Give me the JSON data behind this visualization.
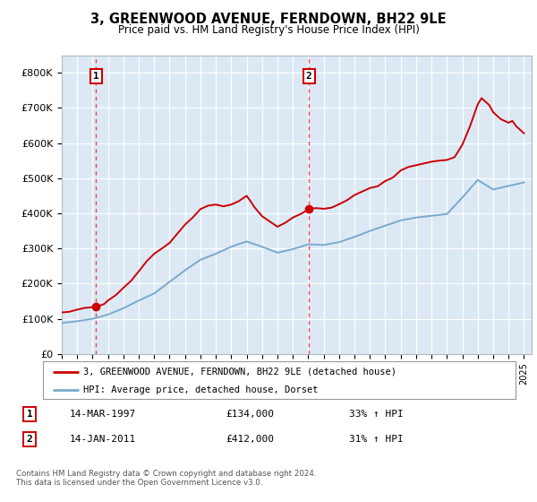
{
  "title": "3, GREENWOOD AVENUE, FERNDOWN, BH22 9LE",
  "subtitle": "Price paid vs. HM Land Registry's House Price Index (HPI)",
  "background_color": "#dce9f5",
  "plot_bg_color": "#dce9f5",
  "ylim": [
    0,
    850000
  ],
  "yticks": [
    0,
    100000,
    200000,
    300000,
    400000,
    500000,
    600000,
    700000,
    800000
  ],
  "ytick_labels": [
    "£0",
    "£100K",
    "£200K",
    "£300K",
    "£400K",
    "£500K",
    "£600K",
    "£700K",
    "£800K"
  ],
  "legend_line1": "3, GREENWOOD AVENUE, FERNDOWN, BH22 9LE (detached house)",
  "legend_line2": "HPI: Average price, detached house, Dorset",
  "sale1_date": 1997.21,
  "sale1_price": 134000,
  "sale2_date": 2011.04,
  "sale2_price": 412000,
  "footnote": "Contains HM Land Registry data © Crown copyright and database right 2024.\nThis data is licensed under the Open Government Licence v3.0.",
  "table_rows": [
    {
      "num": "1",
      "date": "14-MAR-1997",
      "price": "£134,000",
      "hpi": "33% ↑ HPI"
    },
    {
      "num": "2",
      "date": "14-JAN-2011",
      "price": "£412,000",
      "hpi": "31% ↑ HPI"
    }
  ],
  "red_line_color": "#cc0000",
  "blue_line_color": "#7aaacc",
  "sale_marker_color": "#cc0000",
  "vline_color": "#ee4444",
  "grid_color": "#ffffff",
  "border_color": "#aabbcc",
  "years_hpi": [
    1995,
    1996,
    1997,
    1998,
    1999,
    2000,
    2001,
    2002,
    2003,
    2004,
    2005,
    2006,
    2007,
    2008,
    2009,
    2010,
    2011,
    2012,
    2013,
    2014,
    2015,
    2016,
    2017,
    2018,
    2019,
    2020,
    2021,
    2022,
    2023,
    2024,
    2025
  ],
  "hpi_values": [
    88000,
    93000,
    100000,
    112000,
    130000,
    152000,
    172000,
    205000,
    238000,
    268000,
    285000,
    305000,
    320000,
    305000,
    288000,
    298000,
    312000,
    310000,
    318000,
    333000,
    350000,
    365000,
    380000,
    388000,
    393000,
    398000,
    445000,
    495000,
    468000,
    478000,
    488000
  ],
  "red_seg1_years": [
    1995,
    1995.5,
    1996,
    1996.5,
    1997.21,
    1997.5,
    1997.75,
    1998,
    1998.5,
    1999,
    1999.5,
    2000,
    2000.5,
    2001,
    2001.5,
    2002,
    2002.5,
    2003,
    2003.5,
    2004,
    2004.5,
    2005,
    2005.5,
    2006,
    2006.5,
    2007,
    2007.25,
    2007.5,
    2008,
    2008.5,
    2009,
    2009.5,
    2010,
    2010.5,
    2011.04
  ],
  "red_seg1_vals": [
    118000,
    120000,
    126000,
    131000,
    134000,
    138000,
    142000,
    152000,
    167000,
    188000,
    208000,
    235000,
    263000,
    285000,
    300000,
    316000,
    342000,
    368000,
    388000,
    412000,
    422000,
    425000,
    420000,
    425000,
    435000,
    450000,
    435000,
    418000,
    392000,
    377000,
    362000,
    373000,
    388000,
    398000,
    412000
  ],
  "red_seg2_years": [
    2011.04,
    2011.5,
    2012,
    2012.5,
    2013,
    2013.5,
    2014,
    2014.5,
    2015,
    2015.5,
    2016,
    2016.5,
    2017,
    2017.5,
    2018,
    2018.5,
    2019,
    2019.5,
    2020,
    2020.5,
    2021,
    2021.5,
    2022,
    2022.25,
    2022.5,
    2022.75,
    2023,
    2023.5,
    2024,
    2024.25,
    2024.5,
    2025
  ],
  "red_seg2_vals": [
    412000,
    415000,
    413000,
    416000,
    426000,
    437000,
    452000,
    462000,
    472000,
    477000,
    492000,
    502000,
    522000,
    532000,
    537000,
    542000,
    547000,
    550000,
    552000,
    560000,
    595000,
    648000,
    710000,
    728000,
    718000,
    708000,
    688000,
    668000,
    658000,
    663000,
    648000,
    628000
  ]
}
